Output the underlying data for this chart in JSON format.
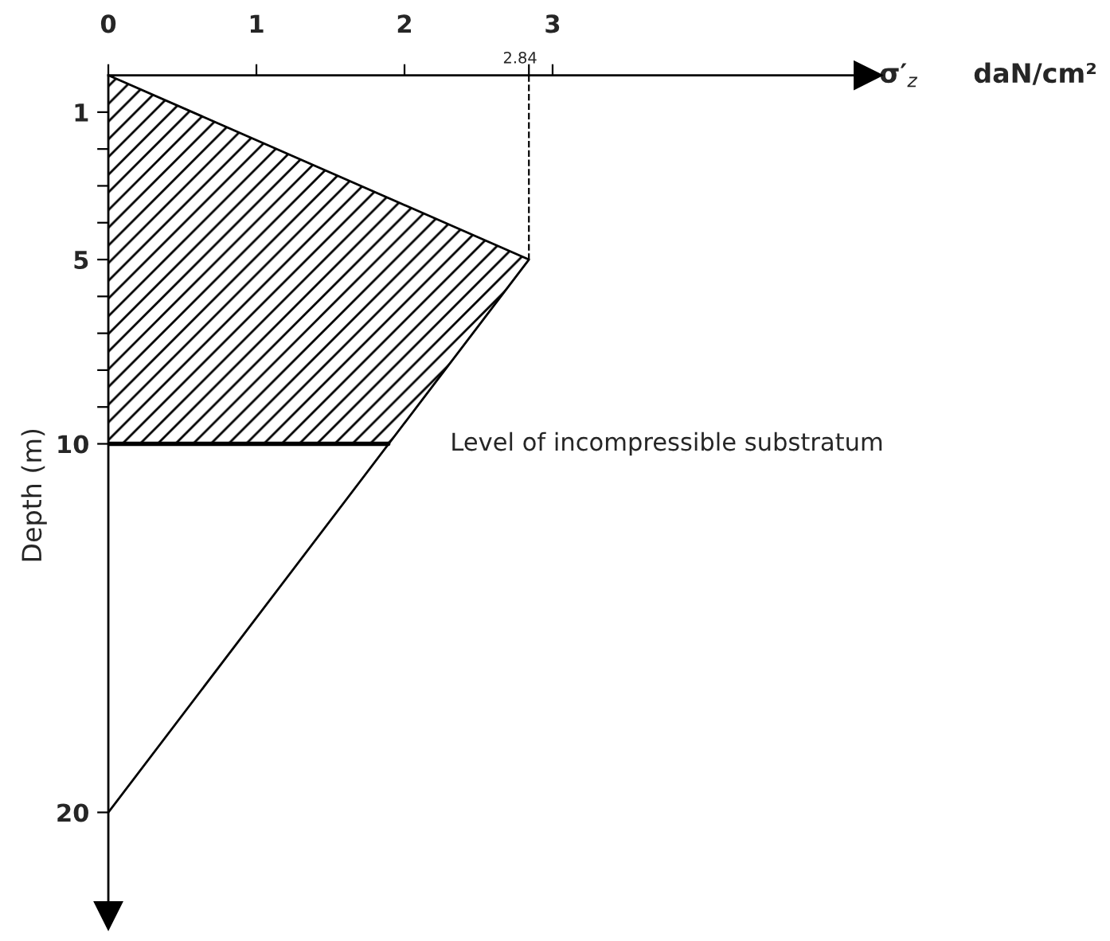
{
  "chart_data": {
    "type": "line",
    "xlabel": "σ′$_{z}$      daN/cm²",
    "ylabel": "Depth (m)",
    "series": [
      {
        "type": "line",
        "color": "#000000",
        "x": [
          0,
          2.84,
          0
        ],
        "values": [
          0,
          5,
          20
        ]
      },
      {
        "type": "area",
        "color": "#000000",
        "x": [
          0,
          2.84,
          1.89,
          0
        ],
        "values": [
          0,
          5,
          10,
          10
        ]
      }
    ],
    "xlim": [
      0,
      5.13
    ],
    "ylim": [
      22.8,
      0
    ],
    "xticks": [
      0,
      1,
      2,
      {
        "value": 2.84,
        "label": null
      },
      3
    ],
    "yticks": [
      {
        "value": 1,
        "label": "1"
      },
      {
        "value": 2,
        "label": null
      },
      {
        "value": 3,
        "label": null
      },
      {
        "value": 4,
        "label": null
      },
      5,
      {
        "value": 6,
        "label": null
      },
      {
        "value": 7,
        "label": null
      },
      {
        "value": 8,
        "label": null
      },
      {
        "value": 9,
        "label": null
      },
      10,
      20
    ],
    "ref_lines": [
      {
        "axis": "x",
        "value": 2.84,
        "line_style": "dashed",
        "color": "#000000",
        "label": "2.84"
      }
    ],
    "annotations": [
      {
        "text": "Level of incompressible substratum",
        "x": 1.89,
        "y": 10
      }
    ],
    "grid": false,
    "legend": false
  }
}
